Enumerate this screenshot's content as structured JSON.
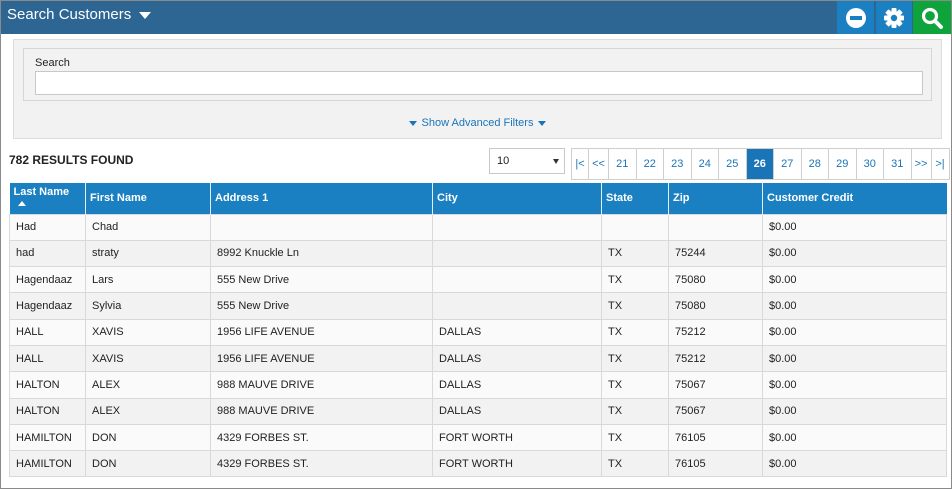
{
  "header": {
    "title": "Search Customers",
    "accent": "#2d6693",
    "buttons": [
      {
        "name": "minus-icon",
        "color": "#1a80c2"
      },
      {
        "name": "gear-icon",
        "color": "#1a80c2"
      },
      {
        "name": "search-icon",
        "color": "#0fa33c"
      }
    ]
  },
  "search": {
    "label": "Search",
    "value": "",
    "placeholder": "",
    "advanced_label": "Show Advanced Filters"
  },
  "results": {
    "count_text": "782 RESULTS FOUND",
    "page_size": "10"
  },
  "pager": {
    "items": [
      "|<",
      "<<",
      "21",
      "22",
      "23",
      "24",
      "25",
      "26",
      "27",
      "28",
      "29",
      "30",
      "31",
      ">>",
      ">|"
    ],
    "active": "26"
  },
  "table": {
    "columns": [
      "Last Name",
      "First Name",
      "Address 1",
      "City",
      "State",
      "Zip",
      "Customer Credit"
    ],
    "sorted_column": "Last Name",
    "sort_direction": "ascending",
    "rows": [
      [
        "Had",
        "Chad",
        "",
        "",
        "",
        "",
        "$0.00"
      ],
      [
        "had",
        "straty",
        "8992 Knuckle Ln",
        "",
        "TX",
        "75244",
        "$0.00"
      ],
      [
        "Hagendaaz",
        "Lars",
        "555 New Drive",
        "",
        "TX",
        "75080",
        "$0.00"
      ],
      [
        "Hagendaaz",
        "Sylvia",
        "555 New Drive",
        "",
        "TX",
        "75080",
        "$0.00"
      ],
      [
        "HALL",
        "XAVIS",
        "1956 LIFE AVENUE",
        "DALLAS",
        "TX",
        "75212",
        "$0.00"
      ],
      [
        "HALL",
        "XAVIS",
        "1956 LIFE AVENUE",
        "DALLAS",
        "TX",
        "75212",
        "$0.00"
      ],
      [
        "HALTON",
        "ALEX",
        "988 MAUVE DRIVE",
        "DALLAS",
        "TX",
        "75067",
        "$0.00"
      ],
      [
        "HALTON",
        "ALEX",
        "988 MAUVE DRIVE",
        "DALLAS",
        "TX",
        "75067",
        "$0.00"
      ],
      [
        "HAMILTON",
        "DON",
        "4329 FORBES ST.",
        "FORT WORTH",
        "TX",
        "76105",
        "$0.00"
      ],
      [
        "HAMILTON",
        "DON",
        "4329 FORBES ST.",
        "FORT WORTH",
        "TX",
        "76105",
        "$0.00"
      ]
    ]
  }
}
